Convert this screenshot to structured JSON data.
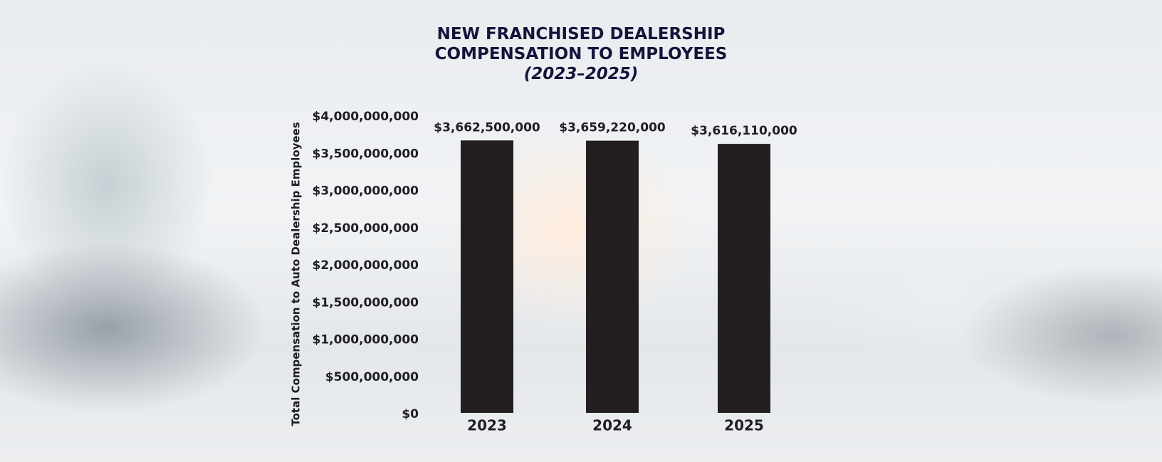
{
  "chart_data": {
    "type": "bar",
    "title": "NEW FRANCHISED DEALERSHIP COMPENSATION TO EMPLOYEES",
    "subtitle": "(2023–2025)",
    "y_axis_label": "Total Compensation to Auto Dealership Employees",
    "categories": [
      "2023",
      "2024",
      "2025"
    ],
    "values": [
      3662500000,
      3659220000,
      3616110000
    ],
    "value_labels": [
      "$3,662,500,000",
      "$3,659,220,000",
      "$3,616,110,000"
    ],
    "color": "#231f20",
    "ylim": [
      0,
      4000000000
    ],
    "yticks": [
      {
        "value": 0,
        "label": "$0"
      },
      {
        "value": 500000000,
        "label": "$500,000,000"
      },
      {
        "value": 1000000000,
        "label": "$1,000,000,000"
      },
      {
        "value": 1500000000,
        "label": "$1,500,000,000"
      },
      {
        "value": 2000000000,
        "label": "$2,000,000,000"
      },
      {
        "value": 2500000000,
        "label": "$2,500,000,000"
      },
      {
        "value": 3000000000,
        "label": "$3,000,000,000"
      },
      {
        "value": 3500000000,
        "label": "$3,500,000,000"
      },
      {
        "value": 4000000000,
        "label": "$4,000,000,000"
      }
    ],
    "grid": false
  }
}
